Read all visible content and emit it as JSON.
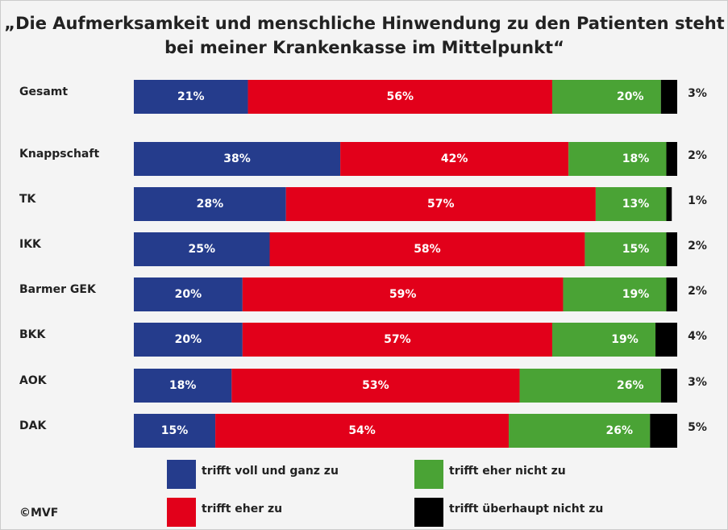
{
  "chart_data": {
    "type": "stacked-bar-horizontal",
    "title": [
      "„Die Aufmerksamkeit und menschliche Hinwendung zu den Patienten steht",
      "bei meiner Krankenkasse im Mittelpunkt“"
    ],
    "categories": [
      "Gesamt",
      "Knappschaft",
      "TK",
      "IKK",
      "Barmer GEK",
      "BKK",
      "AOK",
      "DAK"
    ],
    "series": [
      {
        "name": "trifft voll und ganz zu",
        "color": "#253c8c",
        "values": [
          21,
          38,
          28,
          25,
          20,
          20,
          18,
          15
        ],
        "value_labels": [
          "21%",
          "38%",
          "28%",
          "25%",
          "20%",
          "20%",
          "18%",
          "15%"
        ]
      },
      {
        "name": "trifft eher zu",
        "color": "#e2001a",
        "values": [
          56,
          42,
          57,
          58,
          59,
          57,
          53,
          54
        ],
        "value_labels": [
          "56%",
          "42%",
          "57%",
          "58%",
          "59%",
          "57%",
          "53%",
          "54%"
        ]
      },
      {
        "name": "trifft eher nicht zu",
        "color": "#4aa335",
        "values": [
          20,
          18,
          13,
          15,
          19,
          19,
          26,
          26
        ],
        "value_labels": [
          "20%",
          "18%",
          "13%",
          "15%",
          "19%",
          "19%",
          "26%",
          "26%"
        ]
      },
      {
        "name": "trifft überhaupt nicht zu",
        "color": "#000000",
        "values": [
          3,
          2,
          1,
          2,
          2,
          4,
          3,
          5
        ],
        "value_labels": [
          "3%",
          "2%",
          "1%",
          "2%",
          "2%",
          "4%",
          "3%",
          "5%"
        ]
      }
    ],
    "source": "©MVF"
  }
}
